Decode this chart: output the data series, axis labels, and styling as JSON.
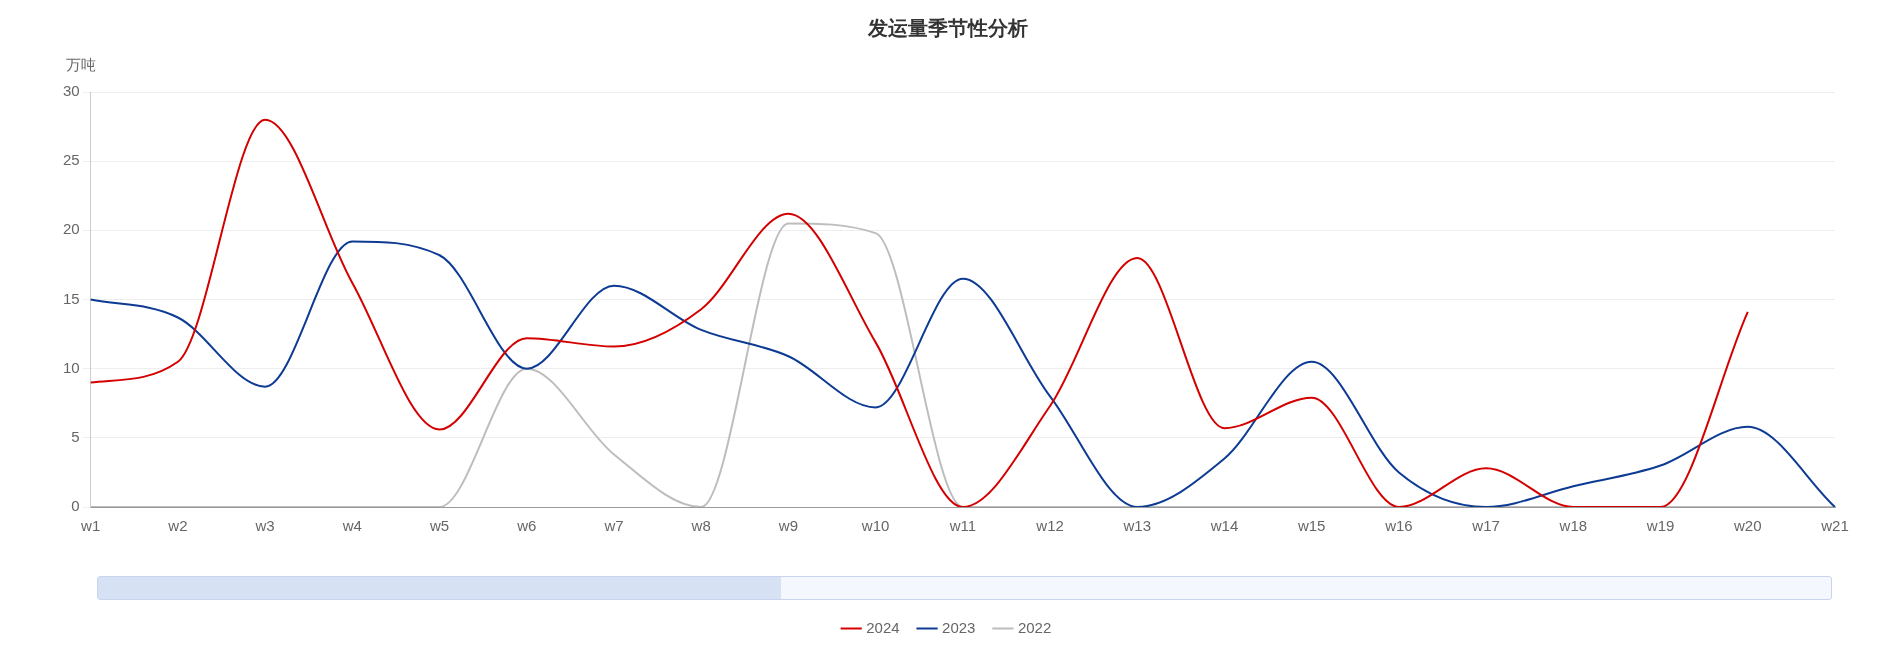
{
  "chart_data": {
    "type": "line",
    "title": "发运量季节性分析",
    "ylabel": "万吨",
    "categories": [
      "w1",
      "w2",
      "w3",
      "w4",
      "w5",
      "w6",
      "w7",
      "w8",
      "w9",
      "w10",
      "w11",
      "w12",
      "w13",
      "w14",
      "w15",
      "w16",
      "w17",
      "w18",
      "w19",
      "w20",
      "w21"
    ],
    "series": [
      {
        "name": "2024",
        "color": "#d40000",
        "values": [
          9,
          10.5,
          28,
          16.2,
          5.6,
          12.2,
          11.6,
          14.3,
          21.2,
          11.9,
          0,
          7.3,
          18,
          5.7,
          7.9,
          0,
          2.8,
          0,
          0,
          14.1,
          null
        ]
      },
      {
        "name": "2023",
        "color": "#0d3b94",
        "values": [
          15,
          13.7,
          8.7,
          19.2,
          18.2,
          10,
          16,
          12.8,
          10.9,
          7.2,
          16.5,
          8,
          0,
          3.5,
          10.5,
          2.5,
          0,
          1.5,
          3,
          5.8,
          0
        ]
      },
      {
        "name": "2022",
        "color": "#bdbdbd",
        "values": [
          0,
          0,
          0,
          0,
          0,
          10,
          3.8,
          0,
          20.5,
          19.8,
          0,
          0,
          0,
          0,
          0,
          0,
          0,
          0,
          0,
          0,
          0
        ]
      }
    ],
    "ylim": [
      0,
      30
    ],
    "yticks": [
      0,
      5,
      10,
      15,
      20,
      25,
      30
    ],
    "grid": "y",
    "legend": "bottom",
    "marker": "none",
    "line_style": "solid"
  }
}
